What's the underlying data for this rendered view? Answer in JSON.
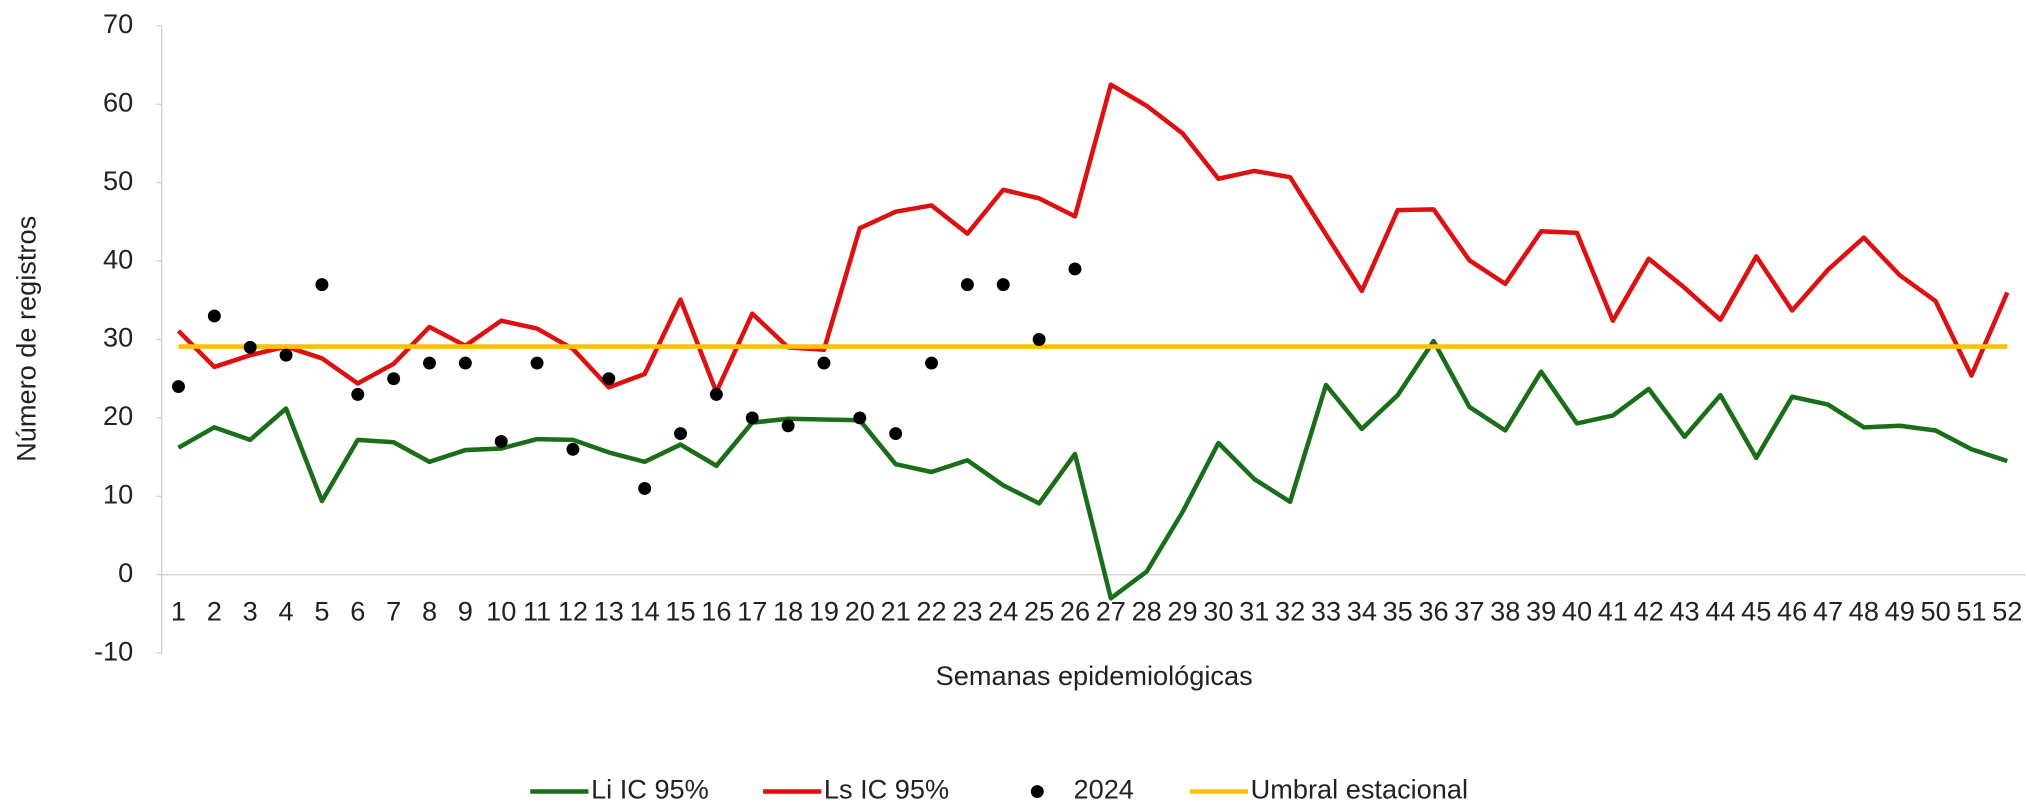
{
  "chart_data": {
    "type": "line",
    "xlabel": "Semanas epidemiológicas",
    "ylabel": "Número de registros",
    "categories": [
      "1",
      "2",
      "3",
      "4",
      "5",
      "6",
      "7",
      "8",
      "9",
      "10",
      "11",
      "12",
      "13",
      "14",
      "15",
      "16",
      "17",
      "18",
      "19",
      "20",
      "21",
      "22",
      "23",
      "24",
      "25",
      "26",
      "27",
      "28",
      "29",
      "30",
      "31",
      "32",
      "33",
      "34",
      "35",
      "36",
      "37",
      "38",
      "39",
      "40",
      "41",
      "42",
      "43",
      "44",
      "45",
      "46",
      "47",
      "48",
      "49",
      "50",
      "51",
      "52"
    ],
    "ylim": [
      -10,
      70
    ],
    "yticks": [
      -10,
      0,
      10,
      20,
      30,
      40,
      50,
      60,
      70
    ],
    "grid": false,
    "legend": "bottom",
    "series": [
      {
        "name": "Li IC 95%",
        "color": "#1a6e1a",
        "kind": "line",
        "values": [
          16.2,
          18.8,
          17.2,
          21.2,
          9.4,
          17.2,
          16.9,
          14.4,
          15.9,
          16.1,
          17.3,
          17.2,
          15.6,
          14.4,
          16.6,
          13.9,
          19.4,
          19.9,
          19.8,
          19.7,
          14.1,
          13.1,
          14.6,
          11.4,
          9.1,
          15.4,
          -3.0,
          0.4,
          8.0,
          16.8,
          12.2,
          9.3,
          24.2,
          18.6,
          22.9,
          29.8,
          21.4,
          18.4,
          25.9,
          19.3,
          20.3,
          23.7,
          17.6,
          22.9,
          14.9,
          22.7,
          21.7,
          18.8,
          19.0,
          18.4,
          16.0,
          14.5
        ]
      },
      {
        "name": "Ls IC 95%",
        "color": "#dd1111",
        "kind": "line",
        "values": [
          31.1,
          26.5,
          28.0,
          29.1,
          27.6,
          24.4,
          26.9,
          31.6,
          29.2,
          32.4,
          31.4,
          28.8,
          23.9,
          25.6,
          35.1,
          23.3,
          33.3,
          29.0,
          28.7,
          44.2,
          46.3,
          47.1,
          43.5,
          49.1,
          48.0,
          45.7,
          62.5,
          59.8,
          56.3,
          50.5,
          51.5,
          50.7,
          43.4,
          36.2,
          46.5,
          46.6,
          40.1,
          37.1,
          43.8,
          43.6,
          32.4,
          40.3,
          36.6,
          32.5,
          40.6,
          33.7,
          38.9,
          43.0,
          38.2,
          34.9,
          25.4,
          36.0
        ]
      },
      {
        "name": "2024",
        "color": "#000000",
        "kind": "scatter",
        "values": [
          24,
          33,
          29,
          28,
          37,
          23,
          25,
          27,
          27,
          17,
          27,
          16,
          25,
          11,
          18,
          23,
          20,
          19,
          27,
          20,
          18,
          27,
          37,
          37,
          30,
          39,
          null,
          null,
          null,
          null,
          null,
          null,
          null,
          null,
          null,
          null,
          null,
          null,
          null,
          null,
          null,
          null,
          null,
          null,
          null,
          null,
          null,
          null,
          null,
          null,
          null,
          null
        ]
      },
      {
        "name": "Umbral estacional",
        "color": "#ffc000",
        "kind": "line",
        "values": [
          29.1,
          29.1,
          29.1,
          29.1,
          29.1,
          29.1,
          29.1,
          29.1,
          29.1,
          29.1,
          29.1,
          29.1,
          29.1,
          29.1,
          29.1,
          29.1,
          29.1,
          29.1,
          29.1,
          29.1,
          29.1,
          29.1,
          29.1,
          29.1,
          29.1,
          29.1,
          29.1,
          29.1,
          29.1,
          29.1,
          29.1,
          29.1,
          29.1,
          29.1,
          29.1,
          29.1,
          29.1,
          29.1,
          29.1,
          29.1,
          29.1,
          29.1,
          29.1,
          29.1,
          29.1,
          29.1,
          29.1,
          29.1,
          29.1,
          29.1,
          29.1,
          29.1
        ]
      }
    ]
  }
}
